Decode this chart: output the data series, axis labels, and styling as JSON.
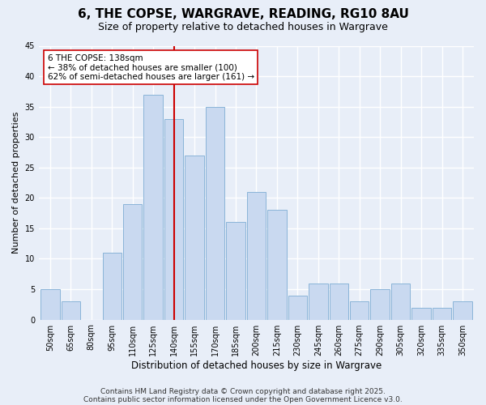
{
  "title1": "6, THE COPSE, WARGRAVE, READING, RG10 8AU",
  "title2": "Size of property relative to detached houses in Wargrave",
  "xlabel": "Distribution of detached houses by size in Wargrave",
  "ylabel": "Number of detached properties",
  "categories": [
    "50sqm",
    "65sqm",
    "80sqm",
    "95sqm",
    "110sqm",
    "125sqm",
    "140sqm",
    "155sqm",
    "170sqm",
    "185sqm",
    "200sqm",
    "215sqm",
    "230sqm",
    "245sqm",
    "260sqm",
    "275sqm",
    "290sqm",
    "305sqm",
    "320sqm",
    "335sqm",
    "350sqm"
  ],
  "values": [
    5,
    3,
    0,
    11,
    19,
    37,
    33,
    27,
    35,
    16,
    21,
    18,
    4,
    6,
    6,
    3,
    5,
    6,
    2,
    2,
    3
  ],
  "bar_color": "#c9d9f0",
  "bar_edge_color": "#8ab4d8",
  "vline_x_index": 6,
  "vline_color": "#cc0000",
  "annotation_title": "6 THE COPSE: 138sqm",
  "annotation_line1": "← 38% of detached houses are smaller (100)",
  "annotation_line2": "62% of semi-detached houses are larger (161) →",
  "annotation_box_color": "#ffffff",
  "annotation_box_edge": "#cc0000",
  "ylim": [
    0,
    45
  ],
  "yticks": [
    0,
    5,
    10,
    15,
    20,
    25,
    30,
    35,
    40,
    45
  ],
  "footer1": "Contains HM Land Registry data © Crown copyright and database right 2025.",
  "footer2": "Contains public sector information licensed under the Open Government Licence v3.0.",
  "bg_color": "#e8eef8",
  "grid_color": "#ffffff",
  "title1_fontsize": 11,
  "title2_fontsize": 9,
  "xlabel_fontsize": 8.5,
  "ylabel_fontsize": 8,
  "annotation_fontsize": 7.5,
  "footer_fontsize": 6.5,
  "tick_fontsize": 7
}
